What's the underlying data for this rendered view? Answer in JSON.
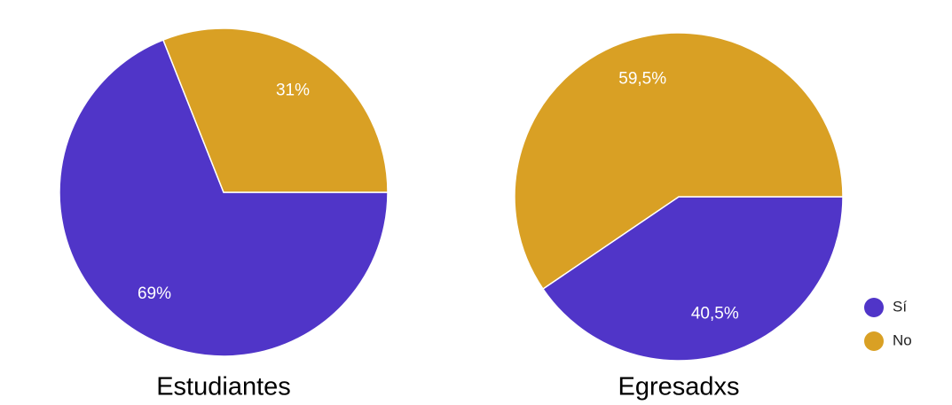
{
  "categories": [
    "Sí",
    "No"
  ],
  "colors": [
    "#5035c8",
    "#d9a024"
  ],
  "legend_position": "bottom-right",
  "chart_data": [
    {
      "type": "pie",
      "title": "Estudiantes",
      "values": [
        69,
        31
      ],
      "value_labels": [
        "69%",
        "31%"
      ]
    },
    {
      "type": "pie",
      "title": "Egresadxs",
      "values": [
        40.5,
        59.5
      ],
      "value_labels": [
        "40,5%",
        "59,5%"
      ]
    }
  ]
}
